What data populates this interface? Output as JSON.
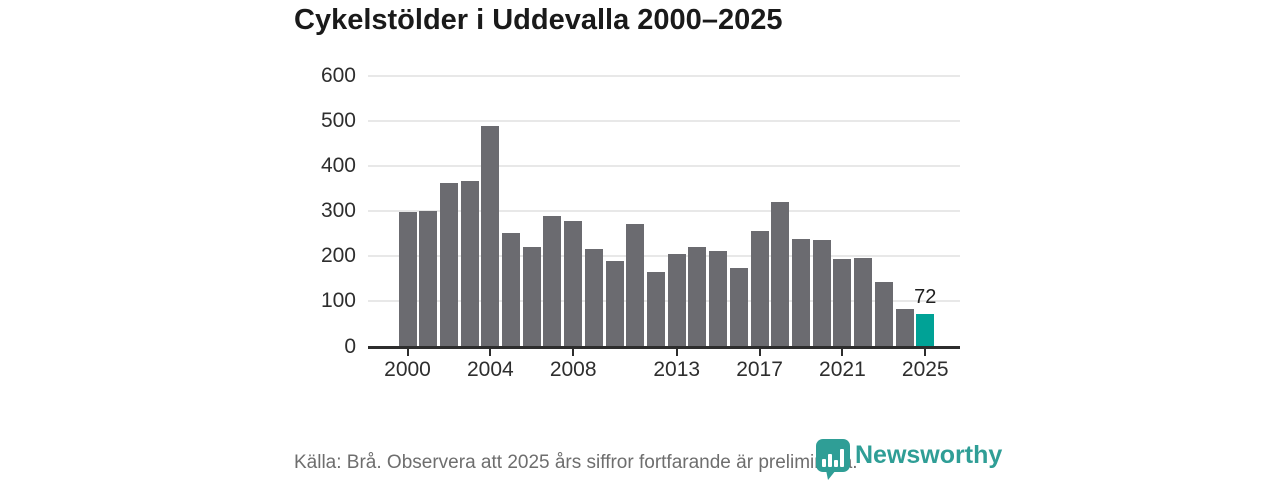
{
  "title": "Cykelstölder i Uddevalla 2000–2025",
  "chart_data": {
    "type": "bar",
    "x": [
      2000,
      2001,
      2002,
      2003,
      2004,
      2005,
      2006,
      2007,
      2008,
      2009,
      2010,
      2011,
      2012,
      2013,
      2014,
      2015,
      2016,
      2017,
      2018,
      2019,
      2020,
      2021,
      2022,
      2023,
      2024,
      2025
    ],
    "values": [
      297,
      301,
      363,
      366,
      489,
      251,
      221,
      289,
      277,
      215,
      190,
      271,
      164,
      204,
      221,
      211,
      173,
      256,
      321,
      239,
      236,
      194,
      197,
      143,
      83,
      72
    ],
    "title": "Cykelstölder i Uddevalla 2000–2025",
    "xlabel": "",
    "ylabel": "",
    "ylim": [
      0,
      600
    ],
    "yticks": [
      0,
      100,
      200,
      300,
      400,
      500,
      600
    ],
    "xtick_years": [
      2000,
      2004,
      2008,
      2013,
      2017,
      2021,
      2025
    ],
    "grid": true,
    "legend": false,
    "highlight_year": 2025,
    "highlight_value_label": "72",
    "colors": {
      "bar": "#6b6b70",
      "highlight_bar": "#00a296",
      "gridline": "#e8e8e8",
      "axis": "#2d2d2d",
      "tick_text": "#2e2e2e"
    }
  },
  "footer": {
    "source_text": "Källa: Brå. Observera att 2025 års siffror fortfarande är preliminära."
  },
  "branding": {
    "name": "Newsworthy",
    "color": "#2f9e96",
    "icon": "bar-chart-speech-bubble-icon"
  }
}
